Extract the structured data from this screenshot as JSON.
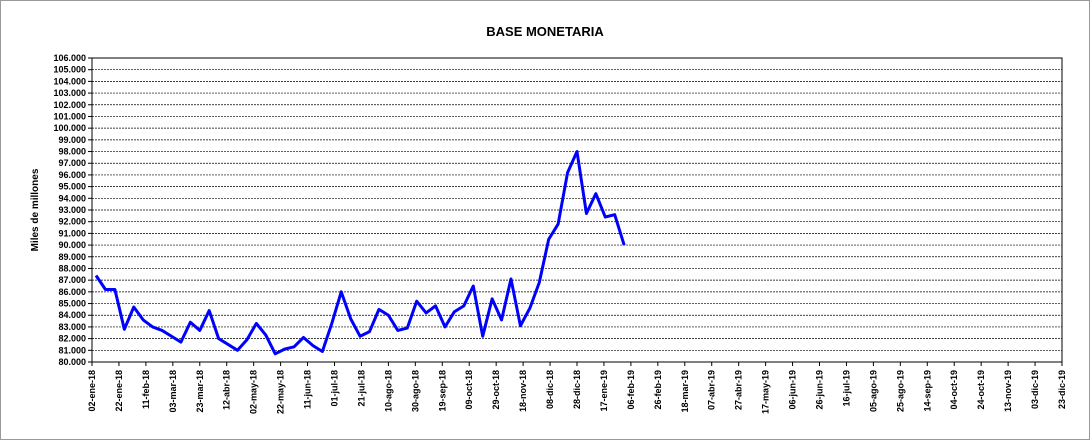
{
  "chart_data": {
    "type": "line",
    "title": "BASE MONETARIA",
    "y_label": "Miles de millones",
    "x": [
      "2018-01-05",
      "2018-01-12",
      "2018-01-19",
      "2018-01-26",
      "2018-02-02",
      "2018-02-09",
      "2018-02-16",
      "2018-02-23",
      "2018-03-02",
      "2018-03-09",
      "2018-03-16",
      "2018-03-23",
      "2018-03-30",
      "2018-04-06",
      "2018-04-13",
      "2018-04-20",
      "2018-04-27",
      "2018-05-04",
      "2018-05-11",
      "2018-05-18",
      "2018-05-25",
      "2018-06-01",
      "2018-06-08",
      "2018-06-15",
      "2018-06-22",
      "2018-06-29",
      "2018-07-06",
      "2018-07-13",
      "2018-07-20",
      "2018-07-27",
      "2018-08-03",
      "2018-08-10",
      "2018-08-17",
      "2018-08-24",
      "2018-08-31",
      "2018-09-07",
      "2018-09-14",
      "2018-09-21",
      "2018-09-28",
      "2018-10-05",
      "2018-10-12",
      "2018-10-19",
      "2018-10-26",
      "2018-11-02",
      "2018-11-09",
      "2018-11-16",
      "2018-11-23",
      "2018-11-30",
      "2018-12-07",
      "2018-12-14",
      "2018-12-21",
      "2018-12-28",
      "2019-01-04",
      "2019-01-11",
      "2019-01-18",
      "2019-01-25",
      "2019-02-01"
    ],
    "series": [
      {
        "color": "#0000ff",
        "values": [
          87400,
          86200,
          86200,
          82800,
          84700,
          83600,
          83000,
          82700,
          82200,
          81700,
          83400,
          82700,
          84400,
          82000,
          81500,
          81000,
          81900,
          83300,
          82300,
          80700,
          81100,
          81300,
          82100,
          81400,
          80900,
          83300,
          86000,
          83700,
          82200,
          82600,
          84500,
          84000,
          82700,
          82900,
          85200,
          84200,
          84800,
          83000,
          84300,
          84800,
          86500,
          82200,
          85400,
          83600,
          87100,
          83100,
          84600,
          86800,
          90500,
          91800,
          96200,
          98000,
          92700,
          94400,
          92400,
          92600,
          90000
        ]
      }
    ],
    "xlim": [
      "2018-01-02",
      "2019-12-23"
    ],
    "xticks": [
      {
        "value": "2018-01-02",
        "label": "02-ene-18"
      },
      {
        "value": "2018-01-22",
        "label": "22-ene-18"
      },
      {
        "value": "2018-02-11",
        "label": "11-feb-18"
      },
      {
        "value": "2018-03-03",
        "label": "03-mar-18"
      },
      {
        "value": "2018-03-23",
        "label": "23-mar-18"
      },
      {
        "value": "2018-04-12",
        "label": "12-abr-18"
      },
      {
        "value": "2018-05-02",
        "label": "02-may-18"
      },
      {
        "value": "2018-05-22",
        "label": "22-may-18"
      },
      {
        "value": "2018-06-11",
        "label": "11-jun-18"
      },
      {
        "value": "2018-07-01",
        "label": "01-jul-18"
      },
      {
        "value": "2018-07-21",
        "label": "21-jul-18"
      },
      {
        "value": "2018-08-10",
        "label": "10-ago-18"
      },
      {
        "value": "2018-08-30",
        "label": "30-ago-18"
      },
      {
        "value": "2018-09-19",
        "label": "19-sep-18"
      },
      {
        "value": "2018-10-09",
        "label": "09-oct-18"
      },
      {
        "value": "2018-10-29",
        "label": "29-oct-18"
      },
      {
        "value": "2018-11-18",
        "label": "18-nov-18"
      },
      {
        "value": "2018-12-08",
        "label": "08-dic-18"
      },
      {
        "value": "2018-12-28",
        "label": "28-dic-18"
      },
      {
        "value": "2019-01-17",
        "label": "17-ene-19"
      },
      {
        "value": "2019-02-06",
        "label": "06-feb-19"
      },
      {
        "value": "2019-02-26",
        "label": "26-feb-19"
      },
      {
        "value": "2019-03-18",
        "label": "18-mar-19"
      },
      {
        "value": "2019-04-07",
        "label": "07-abr-19"
      },
      {
        "value": "2019-04-27",
        "label": "27-abr-19"
      },
      {
        "value": "2019-05-17",
        "label": "17-may-19"
      },
      {
        "value": "2019-06-06",
        "label": "06-jun-19"
      },
      {
        "value": "2019-06-26",
        "label": "26-jun-19"
      },
      {
        "value": "2019-07-16",
        "label": "16-jul-19"
      },
      {
        "value": "2019-08-05",
        "label": "05-ago-19"
      },
      {
        "value": "2019-08-25",
        "label": "25-ago-19"
      },
      {
        "value": "2019-09-14",
        "label": "14-sep-19"
      },
      {
        "value": "2019-10-04",
        "label": "04-oct-19"
      },
      {
        "value": "2019-10-24",
        "label": "24-oct-19"
      },
      {
        "value": "2019-11-13",
        "label": "13-nov-19"
      },
      {
        "value": "2019-12-03",
        "label": "03-dic-19"
      },
      {
        "value": "2019-12-23",
        "label": "23-dic-19"
      }
    ],
    "ylim": [
      80000,
      106000
    ],
    "yticks": [
      {
        "value": 80000,
        "label": "80.000"
      },
      {
        "value": 81000,
        "label": "81.000"
      },
      {
        "value": 82000,
        "label": "82.000"
      },
      {
        "value": 83000,
        "label": "83.000"
      },
      {
        "value": 84000,
        "label": "84.000"
      },
      {
        "value": 85000,
        "label": "85.000"
      },
      {
        "value": 86000,
        "label": "86.000"
      },
      {
        "value": 87000,
        "label": "87.000"
      },
      {
        "value": 88000,
        "label": "88.000"
      },
      {
        "value": 89000,
        "label": "89.000"
      },
      {
        "value": 90000,
        "label": "90.000"
      },
      {
        "value": 91000,
        "label": "91.000"
      },
      {
        "value": 92000,
        "label": "92.000"
      },
      {
        "value": 93000,
        "label": "93.000"
      },
      {
        "value": 94000,
        "label": "94.000"
      },
      {
        "value": 95000,
        "label": "95.000"
      },
      {
        "value": 96000,
        "label": "96.000"
      },
      {
        "value": 97000,
        "label": "97.000"
      },
      {
        "value": 98000,
        "label": "98.000"
      },
      {
        "value": 99000,
        "label": "99.000"
      },
      {
        "value": 100000,
        "label": "100.000"
      },
      {
        "value": 101000,
        "label": "101.000"
      },
      {
        "value": 102000,
        "label": "102.000"
      },
      {
        "value": 103000,
        "label": "103.000"
      },
      {
        "value": 104000,
        "label": "104.000"
      },
      {
        "value": 105000,
        "label": "105.000"
      },
      {
        "value": 106000,
        "label": "106.000"
      }
    ],
    "grid": true
  }
}
